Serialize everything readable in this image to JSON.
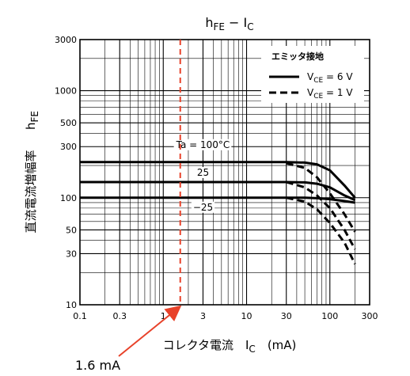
{
  "chart_data": {
    "type": "line",
    "title": "hFE − IC",
    "title_parts": {
      "main1": "h",
      "sub1": "FE",
      "mid": " − I",
      "sub2": "C"
    },
    "xlabel": "コレクタ電流　IC　(mA)",
    "xlabel_parts": {
      "pre": "コレクタ電流　I",
      "sub": "C",
      "post": "　(mA)"
    },
    "ylabel": "直流電流増幅率　hFE",
    "ylabel_parts": {
      "jp": "直流電流増幅率",
      "main": "h",
      "sub": "FE"
    },
    "x_scale": "log",
    "y_scale": "log",
    "xlim": [
      0.1,
      300
    ],
    "ylim": [
      10,
      3000
    ],
    "x_ticks": [
      {
        "value": 0.1,
        "label": "0.1"
      },
      {
        "value": 0.3,
        "label": "0.3"
      },
      {
        "value": 1,
        "label": "1"
      },
      {
        "value": 3,
        "label": "3"
      },
      {
        "value": 10,
        "label": "10"
      },
      {
        "value": 30,
        "label": "30"
      },
      {
        "value": 100,
        "label": "100"
      },
      {
        "value": 300,
        "label": "300"
      }
    ],
    "y_ticks": [
      {
        "value": 10,
        "label": "10"
      },
      {
        "value": 30,
        "label": "30"
      },
      {
        "value": 50,
        "label": "50"
      },
      {
        "value": 100,
        "label": "100"
      },
      {
        "value": 300,
        "label": "300"
      },
      {
        "value": 500,
        "label": "500"
      },
      {
        "value": 1000,
        "label": "1000"
      },
      {
        "value": 3000,
        "label": "3000"
      }
    ],
    "grid": true,
    "legend": {
      "title": "エミッタ接地",
      "placement": "top-right",
      "entries": [
        {
          "style": "solid",
          "pre": "V",
          "sub": "CE",
          "post": " = 6 V"
        },
        {
          "style": "dashed",
          "pre": "V",
          "sub": "CE",
          "post": " = 1 V"
        }
      ]
    },
    "series": [
      {
        "label": "Ta = 100°C",
        "style": "solid",
        "x": [
          0.1,
          10,
          30,
          50,
          70,
          100,
          150,
          200
        ],
        "y": [
          215,
          215,
          215,
          213,
          205,
          180,
          130,
          100
        ]
      },
      {
        "label": "25",
        "style": "solid",
        "x": [
          0.1,
          10,
          30,
          50,
          70,
          100,
          150,
          200
        ],
        "y": [
          140,
          140,
          140,
          139,
          135,
          125,
          105,
          95
        ]
      },
      {
        "label": "−25",
        "style": "solid",
        "x": [
          0.1,
          10,
          30,
          50,
          70,
          100,
          150,
          200
        ],
        "y": [
          100,
          100,
          100,
          100,
          99,
          97,
          93,
          90
        ]
      },
      {
        "label": "",
        "style": "dashed",
        "x": [
          30,
          50,
          70,
          100,
          150,
          200
        ],
        "y": [
          210,
          190,
          155,
          110,
          70,
          48
        ]
      },
      {
        "label": "",
        "style": "dashed",
        "x": [
          30,
          50,
          70,
          100,
          150,
          200
        ],
        "y": [
          140,
          125,
          105,
          80,
          50,
          33
        ]
      },
      {
        "label": "",
        "style": "dashed",
        "x": [
          30,
          50,
          70,
          100,
          150,
          200
        ],
        "y": [
          100,
          92,
          78,
          58,
          38,
          24
        ]
      }
    ],
    "marker": {
      "x": 1.6,
      "color": "#e8422a",
      "label": "1.6 mA"
    }
  }
}
